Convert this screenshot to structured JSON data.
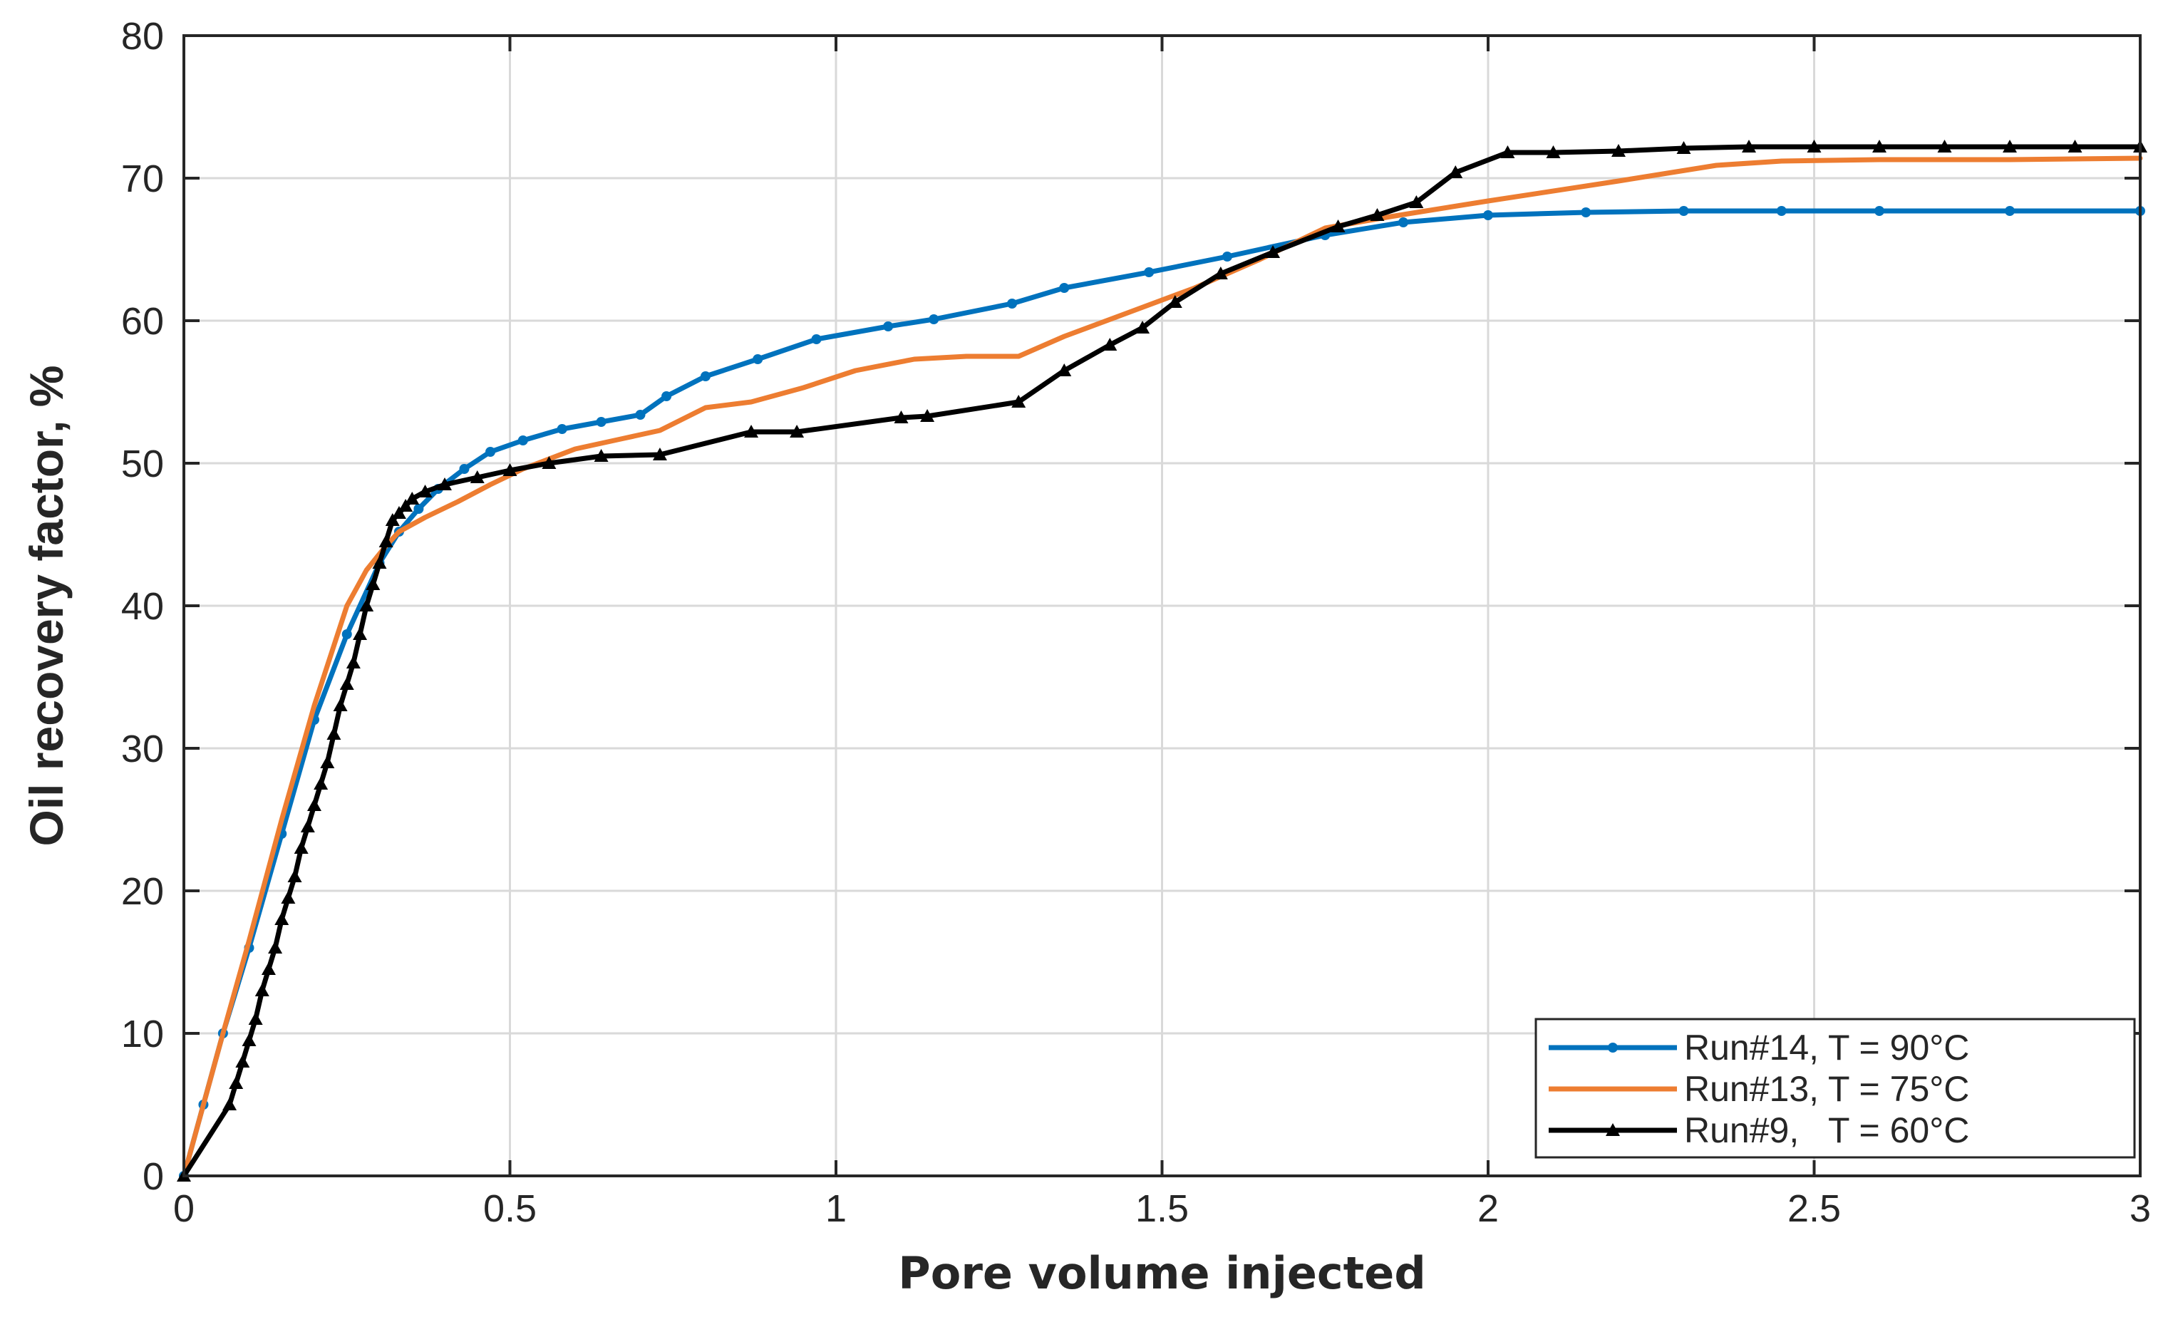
{
  "chart_data": {
    "type": "line",
    "title": "",
    "xlabel": "Pore volume injected",
    "ylabel": "Oil recovery factor, %",
    "xlim": [
      0,
      3
    ],
    "ylim": [
      0,
      80
    ],
    "xticks": [
      0,
      0.5,
      1,
      1.5,
      2,
      2.5,
      3
    ],
    "xtick_labels": [
      "0",
      "0.5",
      "1",
      "1.5",
      "2",
      "2.5",
      "3"
    ],
    "yticks": [
      0,
      10,
      20,
      30,
      40,
      50,
      60,
      70,
      80
    ],
    "ytick_labels": [
      "0",
      "10",
      "20",
      "30",
      "40",
      "50",
      "60",
      "70",
      "80"
    ],
    "grid": true,
    "legend_position": "bottom-right",
    "series": [
      {
        "name": "Run#14, T = 90°C",
        "color": "#0072BD",
        "marker": "dot",
        "x": [
          0,
          0.03,
          0.06,
          0.1,
          0.15,
          0.2,
          0.25,
          0.3,
          0.33,
          0.36,
          0.39,
          0.43,
          0.47,
          0.52,
          0.58,
          0.64,
          0.7,
          0.74,
          0.8,
          0.88,
          0.97,
          1.08,
          1.15,
          1.27,
          1.35,
          1.48,
          1.6,
          1.75,
          1.87,
          2.0,
          2.15,
          2.3,
          2.45,
          2.6,
          2.8,
          3.0
        ],
        "y": [
          0,
          5,
          10,
          16,
          24,
          32,
          38,
          43,
          45.2,
          46.8,
          48.2,
          49.6,
          50.8,
          51.6,
          52.4,
          52.9,
          53.4,
          54.7,
          56.1,
          57.3,
          58.7,
          59.6,
          60.1,
          61.2,
          62.3,
          63.4,
          64.5,
          66.0,
          66.9,
          67.4,
          67.6,
          67.7,
          67.7,
          67.7,
          67.7,
          67.7
        ],
        "marker_indices": [
          0,
          1,
          2,
          3,
          4,
          5,
          6,
          7,
          8,
          9,
          10,
          11,
          12,
          13,
          14,
          15,
          16,
          17,
          18,
          19,
          20,
          21,
          22,
          23,
          24,
          25,
          26,
          27,
          28,
          29,
          30,
          31,
          32,
          33,
          34,
          35
        ]
      },
      {
        "name": "Run#13, T = 75°C",
        "color": "#ED7D31",
        "marker": "none",
        "x": [
          0,
          0.06,
          0.1,
          0.15,
          0.2,
          0.25,
          0.28,
          0.31,
          0.33,
          0.37,
          0.42,
          0.47,
          0.52,
          0.6,
          0.67,
          0.73,
          0.8,
          0.87,
          0.95,
          1.03,
          1.12,
          1.2,
          1.28,
          1.35,
          1.45,
          1.55,
          1.65,
          1.75,
          1.85,
          2.0,
          2.2,
          2.35,
          2.45,
          2.6,
          2.8,
          3.0
        ],
        "y": [
          0,
          10,
          16.5,
          25,
          33,
          40,
          42.5,
          44.2,
          45.2,
          46.2,
          47.3,
          48.5,
          49.6,
          51.0,
          51.7,
          52.3,
          53.9,
          54.3,
          55.3,
          56.5,
          57.3,
          57.5,
          57.5,
          58.9,
          60.6,
          62.3,
          64.3,
          66.5,
          67.3,
          68.4,
          69.8,
          70.9,
          71.2,
          71.3,
          71.3,
          71.4
        ]
      },
      {
        "name": "Run#9,   T = 60°C",
        "color": "#000000",
        "marker": "triangle",
        "x": [
          0,
          0.07,
          0.08,
          0.09,
          0.1,
          0.11,
          0.12,
          0.13,
          0.14,
          0.15,
          0.16,
          0.17,
          0.18,
          0.19,
          0.2,
          0.21,
          0.22,
          0.23,
          0.24,
          0.25,
          0.26,
          0.27,
          0.28,
          0.29,
          0.3,
          0.31,
          0.32,
          0.33,
          0.34,
          0.35,
          0.37,
          0.4,
          0.45,
          0.5,
          0.56,
          0.64,
          0.73,
          0.87,
          0.94,
          1.1,
          1.14,
          1.28,
          1.35,
          1.42,
          1.47,
          1.52,
          1.59,
          1.67,
          1.77,
          1.83,
          1.89,
          1.95,
          2.03,
          2.1,
          2.2,
          2.3,
          2.4,
          2.5,
          2.6,
          2.7,
          2.8,
          2.9,
          3.0
        ],
        "y": [
          0,
          5,
          6.5,
          8,
          9.5,
          11,
          13,
          14.5,
          16,
          18,
          19.5,
          21,
          23,
          24.5,
          26,
          27.5,
          29,
          31,
          33,
          34.5,
          36,
          38,
          40,
          41.5,
          43,
          44.5,
          46,
          46.5,
          47.0,
          47.5,
          48.0,
          48.5,
          49.0,
          49.5,
          50.0,
          50.5,
          50.6,
          52.2,
          52.2,
          53.2,
          53.3,
          54.3,
          56.5,
          58.3,
          59.5,
          61.3,
          63.3,
          64.8,
          66.6,
          67.4,
          68.3,
          70.4,
          71.8,
          71.8,
          71.9,
          72.1,
          72.2,
          72.2,
          72.2,
          72.2,
          72.2,
          72.2,
          72.2
        ]
      }
    ]
  }
}
